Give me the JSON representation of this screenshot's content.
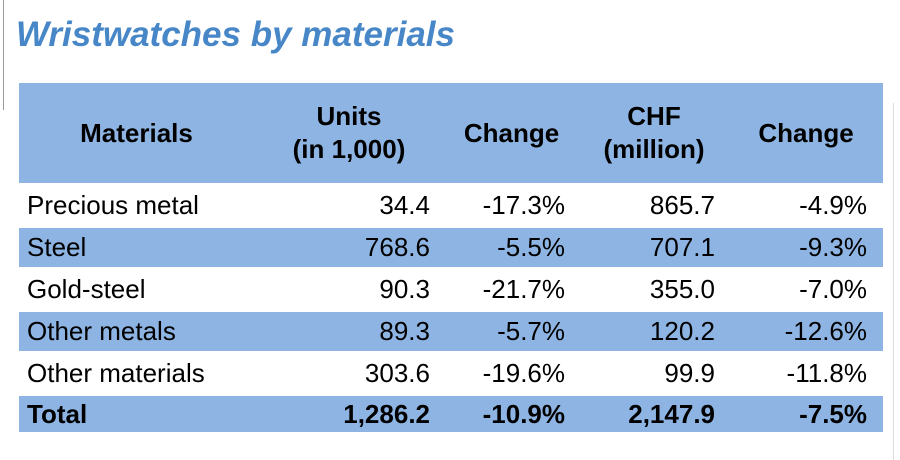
{
  "page": {
    "title": "Wristwatches by materials"
  },
  "colors": {
    "band_blue": "#8DB4E2",
    "title_blue": "#4787C8",
    "text": "#000000",
    "row_gap": "#FFFFFF"
  },
  "table": {
    "columns": [
      {
        "label": "Materials"
      },
      {
        "line1": "Units",
        "line2": "(in 1,000)"
      },
      {
        "label": "Change"
      },
      {
        "line1": "CHF",
        "line2": "(million)"
      },
      {
        "label": "Change"
      }
    ],
    "rows": [
      {
        "material": "Precious metal",
        "units": "34.4",
        "units_change": "-17.3%",
        "chf": "865.7",
        "chf_change": "-4.9%"
      },
      {
        "material": "Steel",
        "units": "768.6",
        "units_change": "-5.5%",
        "chf": "707.1",
        "chf_change": "-9.3%"
      },
      {
        "material": "Gold-steel",
        "units": "90.3",
        "units_change": "-21.7%",
        "chf": "355.0",
        "chf_change": "-7.0%"
      },
      {
        "material": "Other metals",
        "units": "89.3",
        "units_change": "-5.7%",
        "chf": "120.2",
        "chf_change": "-12.6%"
      },
      {
        "material": "Other materials",
        "units": "303.6",
        "units_change": "-19.6%",
        "chf": "99.9",
        "chf_change": "-11.8%"
      }
    ],
    "total": {
      "material": "Total",
      "units": "1,286.2",
      "units_change": "-10.9%",
      "chf": "2,147.9",
      "chf_change": "-7.5%"
    }
  },
  "chart_data": {
    "type": "table",
    "title": "Wristwatches by materials",
    "columns": [
      "Materials",
      "Units (in 1,000)",
      "Change",
      "CHF (million)",
      "Change"
    ],
    "rows": [
      [
        "Precious metal",
        34.4,
        "-17.3%",
        865.7,
        "-4.9%"
      ],
      [
        "Steel",
        768.6,
        "-5.5%",
        707.1,
        "-9.3%"
      ],
      [
        "Gold-steel",
        90.3,
        "-21.7%",
        355.0,
        "-7.0%"
      ],
      [
        "Other metals",
        89.3,
        "-5.7%",
        120.2,
        "-12.6%"
      ],
      [
        "Other materials",
        303.6,
        "-19.6%",
        99.9,
        "-11.8%"
      ],
      [
        "Total",
        1286.2,
        "-10.9%",
        2147.9,
        "-7.5%"
      ]
    ]
  }
}
